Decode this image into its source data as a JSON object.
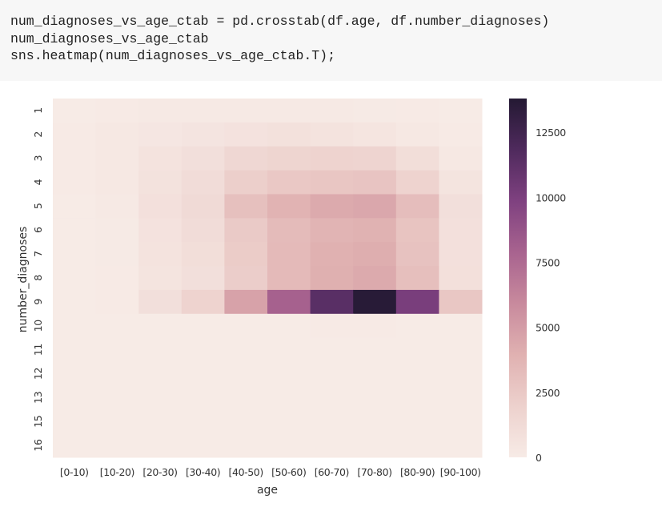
{
  "code": {
    "lines": [
      "num_diagnoses_vs_age_ctab = pd.crosstab(df.age, df.number_diagnoses)",
      "num_diagnoses_vs_age_ctab",
      "sns.heatmap(num_diagnoses_vs_age_ctab.T);"
    ]
  },
  "chart_data": {
    "type": "heatmap",
    "xlabel": "age",
    "ylabel": "number_diagnoses",
    "x_categories": [
      "[0-10)",
      "[10-20)",
      "[20-30)",
      "[30-40)",
      "[40-50)",
      "[50-60)",
      "[60-70)",
      "[70-80)",
      "[80-90)",
      "[90-100)"
    ],
    "y_categories": [
      "1",
      "2",
      "3",
      "4",
      "5",
      "6",
      "7",
      "8",
      "9",
      "10",
      "11",
      "12",
      "13",
      "15",
      "16"
    ],
    "values": [
      [
        30,
        60,
        120,
        120,
        150,
        150,
        150,
        100,
        80,
        20
      ],
      [
        40,
        200,
        350,
        500,
        650,
        750,
        600,
        450,
        250,
        60
      ],
      [
        40,
        250,
        600,
        900,
        1500,
        1700,
        1850,
        1750,
        1000,
        250
      ],
      [
        40,
        200,
        700,
        1100,
        2100,
        2500,
        2650,
        2750,
        1800,
        550
      ],
      [
        35,
        150,
        800,
        1300,
        3000,
        3800,
        4300,
        4450,
        3200,
        900
      ],
      [
        25,
        110,
        650,
        1100,
        2400,
        3300,
        3750,
        3900,
        2800,
        800
      ],
      [
        20,
        100,
        600,
        1000,
        2300,
        3400,
        3950,
        4100,
        2900,
        800
      ],
      [
        15,
        80,
        550,
        900,
        2200,
        3400,
        4000,
        4300,
        3100,
        850
      ],
      [
        10,
        60,
        900,
        1800,
        4700,
        8000,
        11400,
        13600,
        10100,
        2600
      ],
      [
        0,
        5,
        8,
        15,
        30,
        30,
        40,
        40,
        25,
        10
      ],
      [
        0,
        0,
        3,
        5,
        5,
        5,
        10,
        10,
        5,
        0
      ],
      [
        0,
        0,
        2,
        5,
        5,
        8,
        10,
        10,
        5,
        0
      ],
      [
        0,
        0,
        1,
        3,
        5,
        5,
        5,
        5,
        5,
        0
      ],
      [
        0,
        0,
        0,
        2,
        3,
        3,
        5,
        5,
        2,
        0
      ],
      [
        0,
        0,
        0,
        1,
        2,
        3,
        3,
        3,
        2,
        0
      ]
    ],
    "vmin": 0,
    "vmax": 13800,
    "colorbar_ticks": [
      "0",
      "2500",
      "5000",
      "7500",
      "10000",
      "12500"
    ],
    "colormap": [
      "#f7ebe6",
      "#edd1cd",
      "#e0b1b1",
      "#c88a9d",
      "#a8638f",
      "#7f4180",
      "#4f2a5d",
      "#241933"
    ],
    "grid": false
  }
}
